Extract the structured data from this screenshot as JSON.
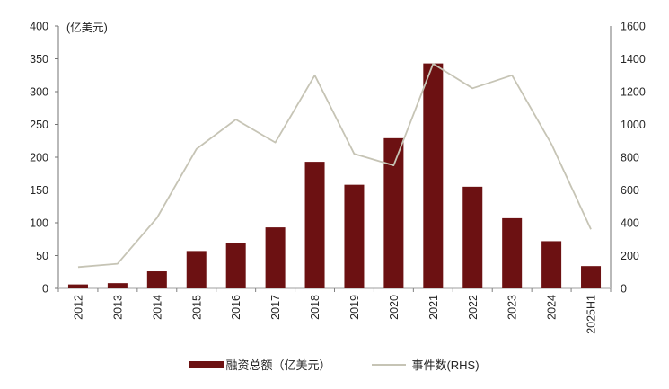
{
  "chart_data": {
    "type": "bar",
    "subtype": "bar-line-combo",
    "unit_label": "(亿美元)",
    "categories": [
      "2012",
      "2013",
      "2014",
      "2015",
      "2016",
      "2017",
      "2018",
      "2019",
      "2020",
      "2021",
      "2022",
      "2023",
      "2024",
      "2025H1"
    ],
    "series": [
      {
        "name": "融资总额（亿美元）",
        "type": "bar",
        "axis": "left",
        "values": [
          6,
          8,
          26,
          57,
          69,
          93,
          193,
          158,
          229,
          343,
          155,
          107,
          72,
          34
        ]
      },
      {
        "name": "事件数(RHS)",
        "type": "line",
        "axis": "right",
        "values": [
          130,
          150,
          430,
          850,
          1030,
          890,
          1300,
          820,
          750,
          1370,
          1220,
          1300,
          880,
          360
        ]
      }
    ],
    "left_axis": {
      "ticks": [
        0,
        50,
        100,
        150,
        200,
        250,
        300,
        350,
        400
      ],
      "range": [
        0,
        400
      ]
    },
    "right_axis": {
      "ticks": [
        0,
        200,
        400,
        600,
        800,
        1000,
        1200,
        1400,
        1600
      ],
      "range": [
        0,
        1600
      ]
    },
    "grid": "off",
    "legend_position": "bottom",
    "colors": {
      "bar": "#6C1112",
      "line": "#C6C4B5",
      "axis": "#737373",
      "baseline": "#BFBFBF",
      "tick": "#808080",
      "text": "#262626"
    }
  }
}
